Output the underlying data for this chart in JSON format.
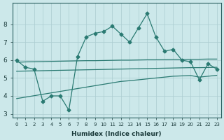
{
  "xlabel": "Humidex (Indice chaleur)",
  "bg_color": "#cce8ea",
  "grid_color": "#aaccd0",
  "line_color": "#2a7a72",
  "x_all": [
    0,
    1,
    2,
    3,
    4,
    5,
    6,
    7,
    8,
    9,
    10,
    11,
    12,
    13,
    14,
    15,
    16,
    17,
    18,
    19,
    20,
    21,
    22,
    23
  ],
  "y_top": [
    6.0,
    5.6,
    5.5,
    3.7,
    4.0,
    4.0,
    3.2,
    6.2,
    7.3,
    7.5,
    7.6,
    7.9,
    7.45,
    7.0,
    7.8,
    8.6,
    7.3,
    6.5,
    6.6,
    6.0,
    5.9,
    4.9,
    5.8,
    5.5
  ],
  "y_upper_band": [
    5.88,
    5.9,
    5.91,
    5.92,
    5.93,
    5.94,
    5.95,
    5.96,
    5.97,
    5.97,
    5.98,
    5.99,
    6.0,
    6.0,
    6.01,
    6.02,
    6.02,
    6.03,
    6.04,
    6.04,
    6.05,
    6.05,
    6.06,
    6.06
  ],
  "y_lower_band": [
    5.38,
    5.39,
    5.4,
    5.41,
    5.42,
    5.43,
    5.44,
    5.45,
    5.46,
    5.47,
    5.48,
    5.49,
    5.5,
    5.51,
    5.52,
    5.53,
    5.54,
    5.55,
    5.56,
    5.57,
    5.58,
    5.58,
    5.59,
    5.6
  ],
  "y_bottom": [
    3.85,
    3.93,
    4.01,
    4.09,
    4.17,
    4.25,
    4.33,
    4.41,
    4.49,
    4.57,
    4.65,
    4.73,
    4.81,
    4.85,
    4.9,
    4.95,
    5.0,
    5.05,
    5.1,
    5.12,
    5.14,
    5.05,
    5.1,
    5.15
  ],
  "ylim": [
    2.8,
    9.2
  ],
  "yticks": [
    3,
    4,
    5,
    6,
    7,
    8
  ],
  "xticks": [
    0,
    1,
    2,
    3,
    4,
    5,
    6,
    7,
    8,
    9,
    10,
    11,
    12,
    13,
    14,
    15,
    16,
    17,
    18,
    19,
    20,
    21,
    22,
    23
  ]
}
